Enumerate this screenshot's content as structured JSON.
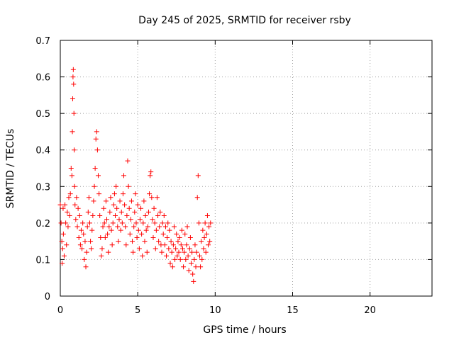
{
  "chart_data": {
    "type": "scatter",
    "title": "Day 245 of 2025, SRMTID for receiver rsby",
    "xlabel": "GPS time / hours",
    "ylabel": "SRMTID / TECUs",
    "xlim": [
      0,
      24
    ],
    "ylim": [
      0,
      0.7
    ],
    "xticks": [
      0,
      5,
      10,
      15,
      20
    ],
    "xtick_labels": [
      "0",
      "5",
      "10",
      "15",
      "20"
    ],
    "yticks": [
      0,
      0.1,
      0.2,
      0.3,
      0.4,
      0.5,
      0.6,
      0.7
    ],
    "ytick_labels": [
      "0",
      "0.1",
      "0.2",
      "0.3",
      "0.4",
      "0.5",
      "0.6",
      "0.7"
    ],
    "grid": true,
    "marker": "+",
    "color": "#ff0000",
    "series": [
      {
        "name": "SRMTID",
        "points": [
          [
            0.0,
            0.25
          ],
          [
            0.05,
            0.2
          ],
          [
            0.1,
            0.15
          ],
          [
            0.12,
            0.09
          ],
          [
            0.15,
            0.13
          ],
          [
            0.18,
            0.24
          ],
          [
            0.2,
            0.17
          ],
          [
            0.25,
            0.11
          ],
          [
            0.3,
            0.25
          ],
          [
            0.35,
            0.2
          ],
          [
            0.4,
            0.14
          ],
          [
            0.45,
            0.23
          ],
          [
            0.5,
            0.19
          ],
          [
            0.55,
            0.27
          ],
          [
            0.6,
            0.22
          ],
          [
            0.65,
            0.28
          ],
          [
            0.7,
            0.35
          ],
          [
            0.75,
            0.33
          ],
          [
            0.78,
            0.45
          ],
          [
            0.8,
            0.54
          ],
          [
            0.82,
            0.6
          ],
          [
            0.84,
            0.62
          ],
          [
            0.86,
            0.58
          ],
          [
            0.88,
            0.5
          ],
          [
            0.9,
            0.4
          ],
          [
            0.92,
            0.3
          ],
          [
            0.95,
            0.25
          ],
          [
            1.0,
            0.21
          ],
          [
            1.05,
            0.27
          ],
          [
            1.1,
            0.19
          ],
          [
            1.15,
            0.24
          ],
          [
            1.2,
            0.16
          ],
          [
            1.25,
            0.22
          ],
          [
            1.3,
            0.14
          ],
          [
            1.35,
            0.18
          ],
          [
            1.4,
            0.13
          ],
          [
            1.45,
            0.2
          ],
          [
            1.5,
            0.17
          ],
          [
            1.55,
            0.1
          ],
          [
            1.6,
            0.15
          ],
          [
            1.65,
            0.08
          ],
          [
            1.7,
            0.12
          ],
          [
            1.75,
            0.19
          ],
          [
            1.8,
            0.23
          ],
          [
            1.85,
            0.27
          ],
          [
            1.9,
            0.2
          ],
          [
            1.95,
            0.15
          ],
          [
            2.0,
            0.13
          ],
          [
            2.05,
            0.18
          ],
          [
            2.1,
            0.22
          ],
          [
            2.15,
            0.26
          ],
          [
            2.2,
            0.3
          ],
          [
            2.25,
            0.35
          ],
          [
            2.3,
            0.43
          ],
          [
            2.35,
            0.45
          ],
          [
            2.4,
            0.4
          ],
          [
            2.45,
            0.33
          ],
          [
            2.5,
            0.28
          ],
          [
            2.55,
            0.22
          ],
          [
            2.6,
            0.16
          ],
          [
            2.65,
            0.11
          ],
          [
            2.7,
            0.13
          ],
          [
            2.75,
            0.19
          ],
          [
            2.8,
            0.24
          ],
          [
            2.85,
            0.2
          ],
          [
            2.9,
            0.16
          ],
          [
            2.95,
            0.26
          ],
          [
            3.0,
            0.21
          ],
          [
            3.05,
            0.17
          ],
          [
            3.1,
            0.12
          ],
          [
            3.15,
            0.19
          ],
          [
            3.2,
            0.23
          ],
          [
            3.25,
            0.27
          ],
          [
            3.3,
            0.18
          ],
          [
            3.35,
            0.14
          ],
          [
            3.4,
            0.2
          ],
          [
            3.45,
            0.25
          ],
          [
            3.5,
            0.28
          ],
          [
            3.55,
            0.22
          ],
          [
            3.6,
            0.3
          ],
          [
            3.65,
            0.24
          ],
          [
            3.7,
            0.19
          ],
          [
            3.75,
            0.15
          ],
          [
            3.8,
            0.21
          ],
          [
            3.85,
            0.26
          ],
          [
            3.9,
            0.18
          ],
          [
            3.95,
            0.23
          ],
          [
            4.0,
            0.2
          ],
          [
            4.05,
            0.28
          ],
          [
            4.1,
            0.33
          ],
          [
            4.15,
            0.25
          ],
          [
            4.2,
            0.19
          ],
          [
            4.25,
            0.14
          ],
          [
            4.3,
            0.22
          ],
          [
            4.35,
            0.37
          ],
          [
            4.4,
            0.3
          ],
          [
            4.45,
            0.24
          ],
          [
            4.5,
            0.17
          ],
          [
            4.55,
            0.21
          ],
          [
            4.6,
            0.26
          ],
          [
            4.65,
            0.15
          ],
          [
            4.7,
            0.12
          ],
          [
            4.75,
            0.19
          ],
          [
            4.8,
            0.23
          ],
          [
            4.85,
            0.28
          ],
          [
            4.9,
            0.2
          ],
          [
            4.95,
            0.16
          ],
          [
            5.0,
            0.25
          ],
          [
            5.05,
            0.18
          ],
          [
            5.1,
            0.13
          ],
          [
            5.15,
            0.21
          ],
          [
            5.2,
            0.24
          ],
          [
            5.25,
            0.17
          ],
          [
            5.3,
            0.11
          ],
          [
            5.35,
            0.2
          ],
          [
            5.4,
            0.26
          ],
          [
            5.45,
            0.15
          ],
          [
            5.5,
            0.22
          ],
          [
            5.55,
            0.18
          ],
          [
            5.6,
            0.12
          ],
          [
            5.65,
            0.19
          ],
          [
            5.7,
            0.23
          ],
          [
            5.75,
            0.28
          ],
          [
            5.8,
            0.33
          ],
          [
            5.85,
            0.34
          ],
          [
            5.9,
            0.27
          ],
          [
            5.95,
            0.21
          ],
          [
            6.0,
            0.16
          ],
          [
            6.05,
            0.24
          ],
          [
            6.1,
            0.2
          ],
          [
            6.15,
            0.13
          ],
          [
            6.2,
            0.18
          ],
          [
            6.25,
            0.27
          ],
          [
            6.3,
            0.22
          ],
          [
            6.35,
            0.15
          ],
          [
            6.4,
            0.19
          ],
          [
            6.45,
            0.23
          ],
          [
            6.5,
            0.14
          ],
          [
            6.55,
            0.12
          ],
          [
            6.6,
            0.2
          ],
          [
            6.65,
            0.17
          ],
          [
            6.7,
            0.22
          ],
          [
            6.75,
            0.14
          ],
          [
            6.8,
            0.19
          ],
          [
            6.85,
            0.11
          ],
          [
            6.9,
            0.16
          ],
          [
            6.95,
            0.2
          ],
          [
            7.0,
            0.13
          ],
          [
            7.05,
            0.18
          ],
          [
            7.1,
            0.09
          ],
          [
            7.15,
            0.15
          ],
          [
            7.2,
            0.12
          ],
          [
            7.25,
            0.08
          ],
          [
            7.3,
            0.14
          ],
          [
            7.35,
            0.19
          ],
          [
            7.4,
            0.1
          ],
          [
            7.45,
            0.13
          ],
          [
            7.5,
            0.17
          ],
          [
            7.55,
            0.11
          ],
          [
            7.6,
            0.15
          ],
          [
            7.65,
            0.12
          ],
          [
            7.7,
            0.16
          ],
          [
            7.75,
            0.1
          ],
          [
            7.8,
            0.14
          ],
          [
            7.85,
            0.18
          ],
          [
            7.9,
            0.13
          ],
          [
            7.95,
            0.08
          ],
          [
            8.0,
            0.12
          ],
          [
            8.05,
            0.17
          ],
          [
            8.1,
            0.1
          ],
          [
            8.15,
            0.14
          ],
          [
            8.2,
            0.19
          ],
          [
            8.25,
            0.11
          ],
          [
            8.3,
            0.07
          ],
          [
            8.35,
            0.13
          ],
          [
            8.4,
            0.16
          ],
          [
            8.45,
            0.09
          ],
          [
            8.5,
            0.12
          ],
          [
            8.55,
            0.06
          ],
          [
            8.6,
            0.04
          ],
          [
            8.65,
            0.1
          ],
          [
            8.7,
            0.14
          ],
          [
            8.75,
            0.08
          ],
          [
            8.8,
            0.12
          ],
          [
            8.85,
            0.27
          ],
          [
            8.9,
            0.33
          ],
          [
            8.95,
            0.2
          ],
          [
            9.0,
            0.11
          ],
          [
            9.05,
            0.08
          ],
          [
            9.1,
            0.15
          ],
          [
            9.15,
            0.1
          ],
          [
            9.2,
            0.18
          ],
          [
            9.25,
            0.13
          ],
          [
            9.3,
            0.16
          ],
          [
            9.35,
            0.2
          ],
          [
            9.4,
            0.12
          ],
          [
            9.45,
            0.17
          ],
          [
            9.5,
            0.22
          ],
          [
            9.55,
            0.14
          ],
          [
            9.6,
            0.19
          ],
          [
            9.65,
            0.15
          ],
          [
            9.7,
            0.2
          ]
        ]
      }
    ]
  }
}
